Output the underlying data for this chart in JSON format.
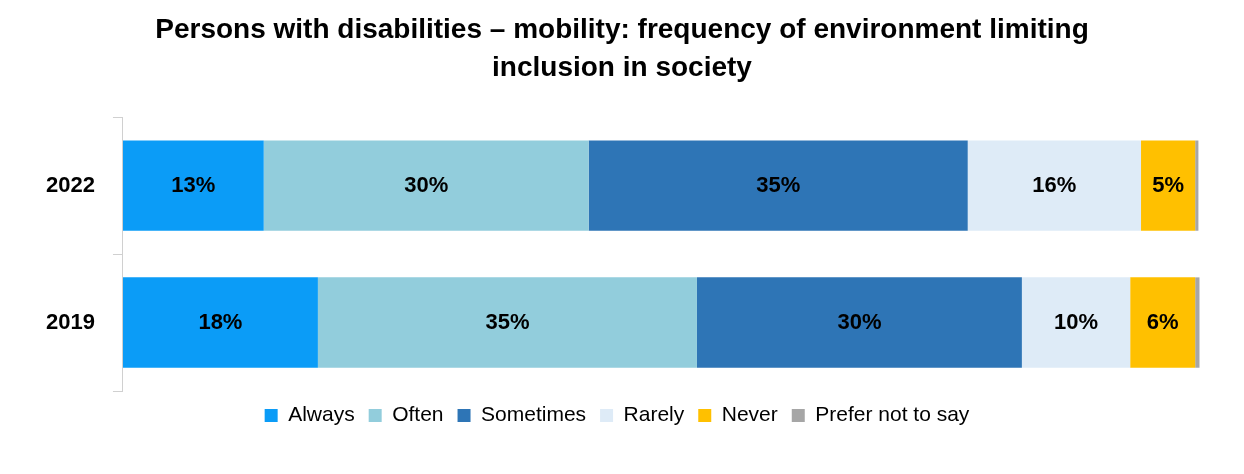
{
  "chart_data": {
    "type": "bar",
    "orientation": "horizontal",
    "stacked": true,
    "title": "Persons with disabilities – mobility: frequency of environment limiting inclusion in society",
    "categories": [
      "2022",
      "2019"
    ],
    "legend": "bottom",
    "series": [
      {
        "name": "Always",
        "color": "#0b9cf7",
        "values": [
          13,
          18
        ],
        "value_labels": [
          "13%",
          "18%"
        ]
      },
      {
        "name": "Often",
        "color": "#92cddc",
        "values": [
          30,
          35
        ],
        "value_labels": [
          "30%",
          "35%"
        ]
      },
      {
        "name": "Sometimes",
        "color": "#2e75b6",
        "values": [
          35,
          30
        ],
        "value_labels": [
          "35%",
          "30%"
        ]
      },
      {
        "name": "Rarely",
        "color": "#deebf7",
        "values": [
          16,
          10
        ],
        "value_labels": [
          "16%",
          "10%"
        ]
      },
      {
        "name": "Never",
        "color": "#ffc000",
        "values": [
          5,
          6
        ],
        "value_labels": [
          "5%",
          "6%"
        ]
      },
      {
        "name": "Prefer not to say",
        "color": "#a6a6a6",
        "values": [
          0.3,
          0.4
        ],
        "value_labels": [
          null,
          null
        ]
      }
    ]
  }
}
